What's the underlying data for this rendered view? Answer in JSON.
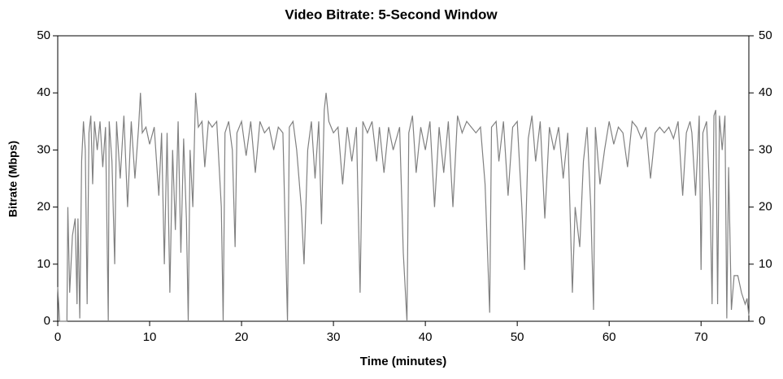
{
  "chart_data": {
    "type": "line",
    "title": "Video Bitrate: 5-Second Window",
    "x_label": "Time (minutes)",
    "y_label": "Bitrate (Mbps)",
    "xlim": [
      0,
      75.2
    ],
    "ylim": [
      0,
      50
    ],
    "y2lim": [
      0,
      50
    ],
    "xticks": [
      0,
      10,
      20,
      30,
      40,
      50,
      60,
      70
    ],
    "yticks": [
      0,
      10,
      20,
      30,
      40,
      50
    ],
    "y2ticks": [
      0,
      10,
      20,
      30,
      40,
      50
    ],
    "series": [
      {
        "color": "#808080",
        "x": [
          0,
          0.2,
          1,
          1.1,
          1.3,
          1.6,
          1.9,
          2.1,
          2.2,
          2.4,
          2.6,
          2.8,
          3.0,
          3.2,
          3.4,
          3.6,
          3.8,
          4,
          4.3,
          4.6,
          4.9,
          5.2,
          5.5,
          5.6,
          5.9,
          6.2,
          6.4,
          6.8,
          7.2,
          7.6,
          8,
          8.4,
          8.8,
          9,
          9.2,
          9.6,
          10,
          10.5,
          11,
          11.3,
          11.6,
          11.9,
          12.2,
          12.5,
          12.8,
          13.1,
          13.4,
          13.7,
          14,
          14.2,
          14.4,
          14.7,
          15,
          15.3,
          15.7,
          16,
          16.4,
          16.8,
          17.3,
          17.8,
          18,
          18.2,
          18.6,
          19,
          19.3,
          19.5,
          20,
          20.5,
          21,
          21.5,
          22,
          22.5,
          23,
          23.5,
          24,
          24.5,
          25,
          25.2,
          25.6,
          26,
          26.5,
          26.8,
          27.2,
          27.6,
          28,
          28.4,
          28.7,
          29,
          29.2,
          29.5,
          30,
          30.5,
          31,
          31.5,
          32,
          32.5,
          32.9,
          33.2,
          33.7,
          34.2,
          34.7,
          35,
          35.5,
          36,
          36.5,
          37.2,
          37.6,
          37.9,
          38,
          38.2,
          38.6,
          39,
          39.5,
          40,
          40.5,
          41,
          41.5,
          42,
          42.5,
          43,
          43.5,
          44,
          44.5,
          45,
          45.5,
          46,
          46.5,
          47,
          47.2,
          47.7,
          48,
          48.5,
          49,
          49.5,
          50,
          50.5,
          50.8,
          51.2,
          51.6,
          52,
          52.5,
          53,
          53.5,
          54,
          54.5,
          55,
          55.5,
          56,
          56.3,
          56.8,
          57.2,
          57.6,
          58,
          58.3,
          58.5,
          59,
          59.5,
          60,
          60.5,
          61,
          61.5,
          62,
          62.5,
          63,
          63.5,
          64,
          64.5,
          65,
          65.5,
          66,
          66.5,
          67,
          67.5,
          68,
          68.4,
          68.8,
          69,
          69.4,
          69.8,
          70,
          70.2,
          70.6,
          71,
          71.2,
          71.4,
          71.6,
          71.8,
          72,
          72.3,
          72.6,
          72.8,
          73,
          73.3,
          73.6,
          74,
          74.4,
          74.8,
          75,
          75.2
        ],
        "values": [
          6,
          0,
          0,
          20,
          5,
          15,
          18,
          3,
          18,
          0.5,
          28,
          35,
          30,
          3,
          33,
          36,
          24,
          35,
          30,
          35,
          27,
          34,
          0,
          35,
          28,
          10,
          35,
          25,
          36,
          20,
          35,
          25,
          34,
          40,
          33,
          34,
          31,
          34,
          22,
          33,
          10,
          33,
          5,
          30,
          16,
          35,
          12,
          32,
          18,
          0,
          30,
          20,
          40,
          34,
          35,
          27,
          35,
          34,
          35,
          20,
          0,
          33,
          35,
          30,
          13,
          33,
          35,
          29,
          35,
          26,
          35,
          33,
          34,
          30,
          34,
          33,
          0,
          34,
          35,
          30,
          20,
          10,
          30,
          35,
          25,
          35,
          17,
          37,
          40,
          35,
          33,
          34,
          24,
          34,
          28,
          34,
          5,
          35,
          33,
          35,
          28,
          34,
          26,
          34,
          30,
          34,
          12,
          3,
          0,
          33,
          36,
          26,
          34,
          30,
          35,
          20,
          34,
          26,
          35,
          20,
          36,
          33,
          35,
          34,
          33,
          34,
          24,
          1.5,
          34,
          35,
          28,
          35,
          22,
          34,
          35,
          20,
          9,
          32,
          36,
          28,
          35,
          18,
          34,
          30,
          34,
          25,
          33,
          5,
          20,
          13,
          28,
          34,
          20,
          2,
          34,
          24,
          30,
          35,
          31,
          34,
          33,
          27,
          35,
          34,
          32,
          34,
          25,
          33,
          34,
          33,
          34,
          32,
          35,
          22,
          33,
          35,
          33,
          22,
          36,
          9,
          33,
          35,
          20,
          3,
          36,
          37,
          3,
          36,
          30,
          36,
          0.5,
          27,
          2,
          8,
          8,
          5,
          3,
          4,
          1
        ]
      }
    ]
  }
}
